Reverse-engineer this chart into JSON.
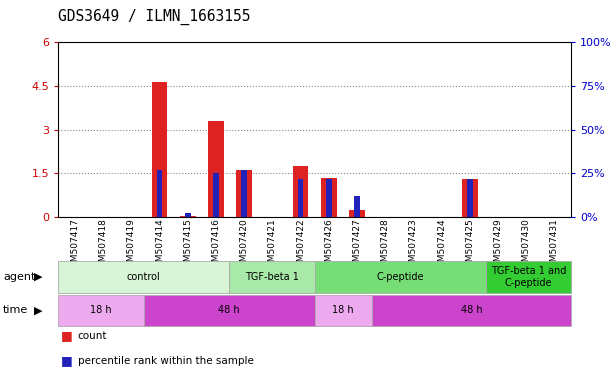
{
  "title": "GDS3649 / ILMN_1663155",
  "samples": [
    "GSM507417",
    "GSM507418",
    "GSM507419",
    "GSM507414",
    "GSM507415",
    "GSM507416",
    "GSM507420",
    "GSM507421",
    "GSM507422",
    "GSM507426",
    "GSM507427",
    "GSM507428",
    "GSM507423",
    "GSM507424",
    "GSM507425",
    "GSM507429",
    "GSM507430",
    "GSM507431"
  ],
  "count_values": [
    0,
    0,
    0,
    4.65,
    0.05,
    3.3,
    1.6,
    0,
    1.75,
    1.35,
    0.25,
    0,
    0,
    0,
    1.3,
    0,
    0,
    0
  ],
  "percentile_values": [
    0,
    0,
    0,
    27,
    2,
    25,
    27,
    0,
    22,
    22,
    12,
    0,
    0,
    0,
    22,
    0,
    0,
    0
  ],
  "ylim_left": [
    0,
    6
  ],
  "ylim_right": [
    0,
    100
  ],
  "yticks_left": [
    0,
    1.5,
    3,
    4.5,
    6
  ],
  "yticks_right": [
    0,
    25,
    50,
    75,
    100
  ],
  "bar_color": "#dd2222",
  "percentile_color": "#2222bb",
  "bar_width": 0.55,
  "percentile_bar_width": 0.2,
  "agent_groups": [
    {
      "label": "control",
      "start": 0,
      "end": 5,
      "color": "#d8f5d8"
    },
    {
      "label": "TGF-beta 1",
      "start": 6,
      "end": 8,
      "color": "#a8e8a8"
    },
    {
      "label": "C-peptide",
      "start": 9,
      "end": 14,
      "color": "#77dd77"
    },
    {
      "label": "TGF-beta 1 and\nC-peptide",
      "start": 15,
      "end": 17,
      "color": "#33cc33"
    }
  ],
  "time_groups": [
    {
      "label": "18 h",
      "start": 0,
      "end": 2,
      "color": "#eeaaee"
    },
    {
      "label": "48 h",
      "start": 3,
      "end": 8,
      "color": "#cc44cc"
    },
    {
      "label": "18 h",
      "start": 9,
      "end": 10,
      "color": "#eeaaee"
    },
    {
      "label": "48 h",
      "start": 11,
      "end": 17,
      "color": "#cc44cc"
    }
  ],
  "agent_row_label": "agent",
  "time_row_label": "time",
  "legend_count_label": "count",
  "legend_percentile_label": "percentile rank within the sample",
  "bg_color": "#ffffff",
  "grid_color": "#888888",
  "tick_label_fontsize": 6.5,
  "title_fontsize": 10.5,
  "axis_label_color_left": "#cc0000",
  "axis_label_color_right": "#0000cc"
}
